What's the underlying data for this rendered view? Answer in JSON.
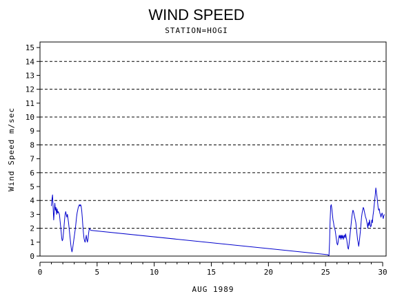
{
  "chart_data": {
    "type": "line",
    "title": "WIND SPEED",
    "subtitle": "STATION=HOGI",
    "xlabel": "AUG 1989",
    "ylabel": "Wind Speed m/sec",
    "xlim": [
      0,
      30.3
    ],
    "ylim": [
      0,
      15.4
    ],
    "x_ticks": [
      0,
      5,
      10,
      15,
      20,
      25,
      30
    ],
    "y_ticks": [
      0,
      1,
      2,
      3,
      4,
      5,
      6,
      7,
      8,
      9,
      10,
      11,
      12,
      13,
      14,
      15
    ],
    "grid_y": [
      0,
      2,
      4,
      6,
      8,
      10,
      12,
      14
    ],
    "grid_style": "dashed",
    "line_color": "#0000cc",
    "series": [
      {
        "values": [
          [
            1.0,
            3.6
          ],
          [
            1.05,
            4.1
          ],
          [
            1.1,
            4.4
          ],
          [
            1.15,
            3.5
          ],
          [
            1.2,
            2.6
          ],
          [
            1.25,
            3.2
          ],
          [
            1.3,
            3.8
          ],
          [
            1.35,
            3.3
          ],
          [
            1.4,
            3.5
          ],
          [
            1.45,
            3.0
          ],
          [
            1.5,
            3.4
          ],
          [
            1.55,
            3.1
          ],
          [
            1.6,
            3.2
          ],
          [
            1.7,
            3.0
          ],
          [
            1.75,
            2.6
          ],
          [
            1.8,
            2.2
          ],
          [
            1.85,
            1.8
          ],
          [
            1.9,
            1.3
          ],
          [
            1.95,
            1.1
          ],
          [
            2.0,
            1.2
          ],
          [
            2.05,
            1.6
          ],
          [
            2.1,
            2.1
          ],
          [
            2.15,
            2.6
          ],
          [
            2.2,
            3.0
          ],
          [
            2.25,
            3.2
          ],
          [
            2.3,
            3.0
          ],
          [
            2.35,
            2.8
          ],
          [
            2.4,
            3.0
          ],
          [
            2.45,
            2.7
          ],
          [
            2.5,
            2.4
          ],
          [
            2.55,
            2.0
          ],
          [
            2.6,
            1.6
          ],
          [
            2.65,
            1.2
          ],
          [
            2.7,
            0.8
          ],
          [
            2.75,
            0.5
          ],
          [
            2.8,
            0.3
          ],
          [
            2.85,
            0.5
          ],
          [
            2.9,
            0.8
          ],
          [
            2.95,
            1.1
          ],
          [
            3.0,
            1.4
          ],
          [
            3.05,
            1.7
          ],
          [
            3.1,
            2.0
          ],
          [
            3.15,
            2.4
          ],
          [
            3.2,
            2.8
          ],
          [
            3.25,
            3.1
          ],
          [
            3.3,
            3.3
          ],
          [
            3.35,
            3.5
          ],
          [
            3.4,
            3.6
          ],
          [
            3.45,
            3.7
          ],
          [
            3.5,
            3.6
          ],
          [
            3.55,
            3.7
          ],
          [
            3.6,
            3.6
          ],
          [
            3.65,
            3.3
          ],
          [
            3.7,
            2.8
          ],
          [
            3.75,
            2.2
          ],
          [
            3.8,
            1.7
          ],
          [
            3.85,
            1.3
          ],
          [
            3.9,
            1.1
          ],
          [
            3.95,
            1.0
          ],
          [
            4.0,
            1.2
          ],
          [
            4.05,
            1.5
          ],
          [
            4.1,
            1.2
          ],
          [
            4.15,
            1.0
          ],
          [
            4.2,
            1.2
          ],
          [
            4.25,
            1.6
          ],
          [
            4.3,
            1.9
          ],
          [
            4.35,
            2.0
          ],
          [
            4.4,
            1.9
          ],
          [
            4.45,
            1.85
          ],
          [
            25.2,
            0.1
          ],
          [
            25.25,
            0.05
          ],
          [
            25.3,
            0.05
          ],
          [
            25.35,
            1.0
          ],
          [
            25.4,
            2.6
          ],
          [
            25.45,
            3.6
          ],
          [
            25.5,
            3.7
          ],
          [
            25.55,
            3.4
          ],
          [
            25.6,
            3.0
          ],
          [
            25.65,
            2.6
          ],
          [
            25.7,
            2.4
          ],
          [
            25.75,
            2.1
          ],
          [
            25.8,
            2.0
          ],
          [
            25.85,
            1.8
          ],
          [
            25.9,
            1.5
          ],
          [
            25.95,
            1.2
          ],
          [
            26.0,
            0.9
          ],
          [
            26.05,
            0.8
          ],
          [
            26.1,
            1.0
          ],
          [
            26.15,
            1.3
          ],
          [
            26.2,
            1.5
          ],
          [
            26.25,
            1.3
          ],
          [
            26.3,
            1.5
          ],
          [
            26.35,
            1.2
          ],
          [
            26.4,
            1.5
          ],
          [
            26.45,
            1.3
          ],
          [
            26.5,
            1.5
          ],
          [
            26.55,
            1.2
          ],
          [
            26.6,
            1.4
          ],
          [
            26.65,
            1.5
          ],
          [
            26.7,
            1.3
          ],
          [
            26.75,
            1.6
          ],
          [
            26.8,
            1.4
          ],
          [
            26.85,
            1.2
          ],
          [
            26.9,
            0.9
          ],
          [
            26.95,
            0.6
          ],
          [
            27.0,
            0.5
          ],
          [
            27.05,
            0.8
          ],
          [
            27.1,
            1.2
          ],
          [
            27.15,
            1.6
          ],
          [
            27.2,
            2.0
          ],
          [
            27.25,
            2.4
          ],
          [
            27.3,
            2.8
          ],
          [
            27.35,
            3.1
          ],
          [
            27.4,
            3.3
          ],
          [
            27.45,
            3.2
          ],
          [
            27.5,
            3.0
          ],
          [
            27.55,
            2.8
          ],
          [
            27.6,
            2.6
          ],
          [
            27.65,
            2.4
          ],
          [
            27.7,
            2.0
          ],
          [
            27.75,
            1.6
          ],
          [
            27.8,
            1.2
          ],
          [
            27.85,
            1.0
          ],
          [
            27.9,
            0.7
          ],
          [
            27.95,
            1.0
          ],
          [
            28.0,
            1.4
          ],
          [
            28.05,
            1.8
          ],
          [
            28.1,
            2.3
          ],
          [
            28.15,
            2.8
          ],
          [
            28.2,
            3.1
          ],
          [
            28.25,
            3.3
          ],
          [
            28.3,
            3.5
          ],
          [
            28.35,
            3.4
          ],
          [
            28.4,
            3.2
          ],
          [
            28.45,
            3.0
          ],
          [
            28.5,
            2.8
          ],
          [
            28.55,
            2.7
          ],
          [
            28.6,
            2.5
          ],
          [
            28.65,
            2.3
          ],
          [
            28.7,
            2.0
          ],
          [
            28.75,
            2.4
          ],
          [
            28.8,
            2.2
          ],
          [
            28.85,
            2.6
          ],
          [
            28.9,
            2.3
          ],
          [
            28.95,
            2.1
          ],
          [
            29.0,
            2.2
          ],
          [
            29.05,
            2.6
          ],
          [
            29.1,
            2.4
          ],
          [
            29.15,
            2.9
          ],
          [
            29.2,
            3.2
          ],
          [
            29.25,
            3.6
          ],
          [
            29.3,
            4.0
          ],
          [
            29.35,
            4.4
          ],
          [
            29.4,
            4.9
          ],
          [
            29.45,
            4.6
          ],
          [
            29.5,
            4.3
          ],
          [
            29.55,
            3.9
          ],
          [
            29.6,
            3.5
          ],
          [
            29.65,
            3.3
          ],
          [
            29.7,
            3.4
          ],
          [
            29.75,
            3.1
          ],
          [
            29.8,
            3.0
          ],
          [
            29.85,
            2.8
          ],
          [
            29.9,
            3.0
          ],
          [
            29.95,
            3.1
          ],
          [
            30.0,
            2.9
          ],
          [
            30.05,
            2.7
          ],
          [
            30.1,
            2.9
          ],
          [
            30.15,
            3.0
          ]
        ]
      }
    ]
  }
}
